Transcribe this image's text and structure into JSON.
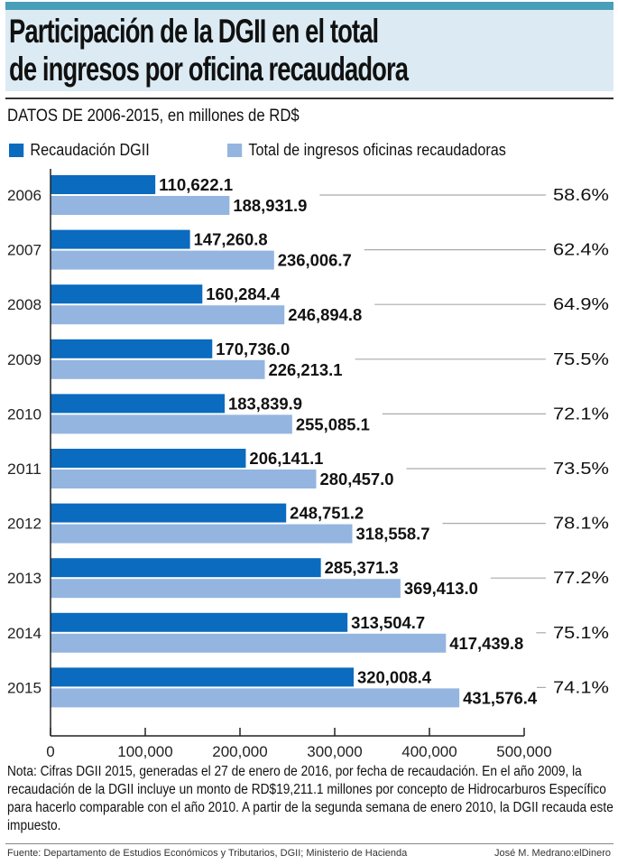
{
  "chart_data": {
    "type": "bar",
    "orientation": "horizontal",
    "title": "Participación de la DGII en el total de ingresos por oficina recaudadora",
    "subtitle": "DATOS DE 2006-2015, en millones de RD$",
    "categories": [
      "2006",
      "2007",
      "2008",
      "2009",
      "2010",
      "2011",
      "2012",
      "2013",
      "2014",
      "2015"
    ],
    "series": [
      {
        "name": "Recaudación DGII",
        "color": "#0a6bbf",
        "values": [
          110622.1,
          147260.8,
          160284.4,
          170736.0,
          183839.9,
          206141.1,
          248751.2,
          285371.3,
          313504.7,
          320008.4
        ],
        "labels": [
          "110,622.1",
          "147,260.8",
          "160,284.4",
          "170,736.0",
          "183,839.9",
          "206,141.1",
          "248,751.2",
          "285,371.3",
          "313,504.7",
          "320,008.4"
        ]
      },
      {
        "name": "Total de ingresos oficinas recaudadoras",
        "color": "#94b5e0",
        "values": [
          188931.9,
          236006.7,
          246894.8,
          226213.1,
          255085.1,
          280457.0,
          318558.7,
          369413.0,
          417439.8,
          431576.4
        ],
        "labels": [
          "188,931.9",
          "236,006.7",
          "246,894.8",
          "226,213.1",
          "255,085.1",
          "280,457.0",
          "318,558.7",
          "369,413.0",
          "417,439.8",
          "431,576.4"
        ]
      }
    ],
    "percentages": [
      "58.6%",
      "62.4%",
      "64.9%",
      "75.5%",
      "72.1%",
      "73.5%",
      "78.1%",
      "77.2%",
      "75.1%",
      "74.1%"
    ],
    "xlim": [
      0,
      500000
    ],
    "xticks": [
      0,
      100000,
      200000,
      300000,
      400000,
      500000
    ],
    "xtick_labels": [
      "0",
      "100,000",
      "200,000",
      "300,000",
      "400,000",
      "500,000"
    ],
    "legend": "top-left",
    "grid": false
  },
  "note": "Nota: Cifras DGII 2015, generadas el 27 de enero de 2016, por fecha de recaudación. En el año 2009, la recaudación de la DGII incluye un monto de RD$19,211.1 millones por concepto de Hidrocarburos Específico para hacerlo comparable con el año 2010. A partir de la segunda semana de enero 2010, la DGII recauda este impuesto.",
  "source": "Fuente: Departamento de Estudios Económicos y Tributarios, DGII; Ministerio de Hacienda",
  "credit": "José M. Medrano:elDinero",
  "colors": {
    "header_stripe": "#4a9fb8",
    "header_bg": "#dcebf3"
  }
}
